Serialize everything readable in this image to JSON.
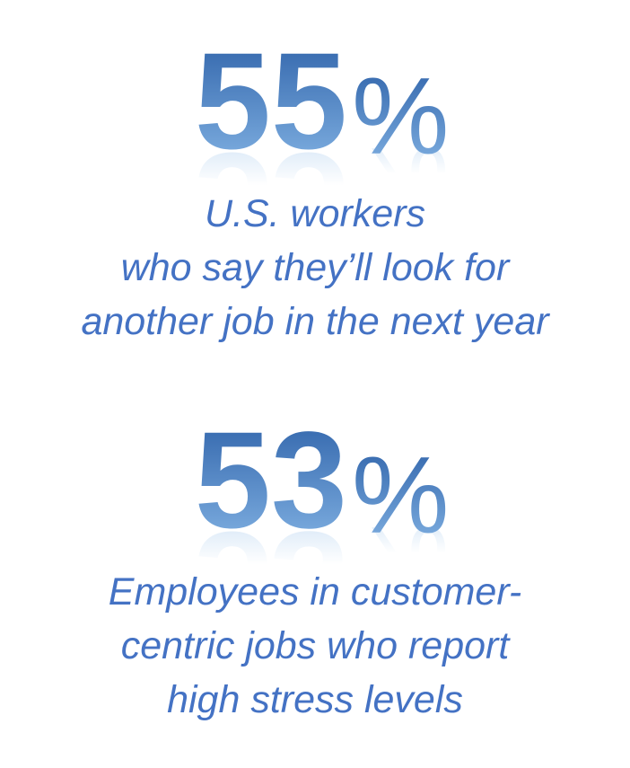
{
  "stats": [
    {
      "number": "55",
      "unit": "%",
      "description": [
        "U.S. workers",
        "who say they’ll look for",
        "another job in the next year"
      ]
    },
    {
      "number": "53",
      "unit": "%",
      "description": [
        "Employees in customer-",
        "centric jobs who report",
        "high stress levels"
      ]
    }
  ]
}
